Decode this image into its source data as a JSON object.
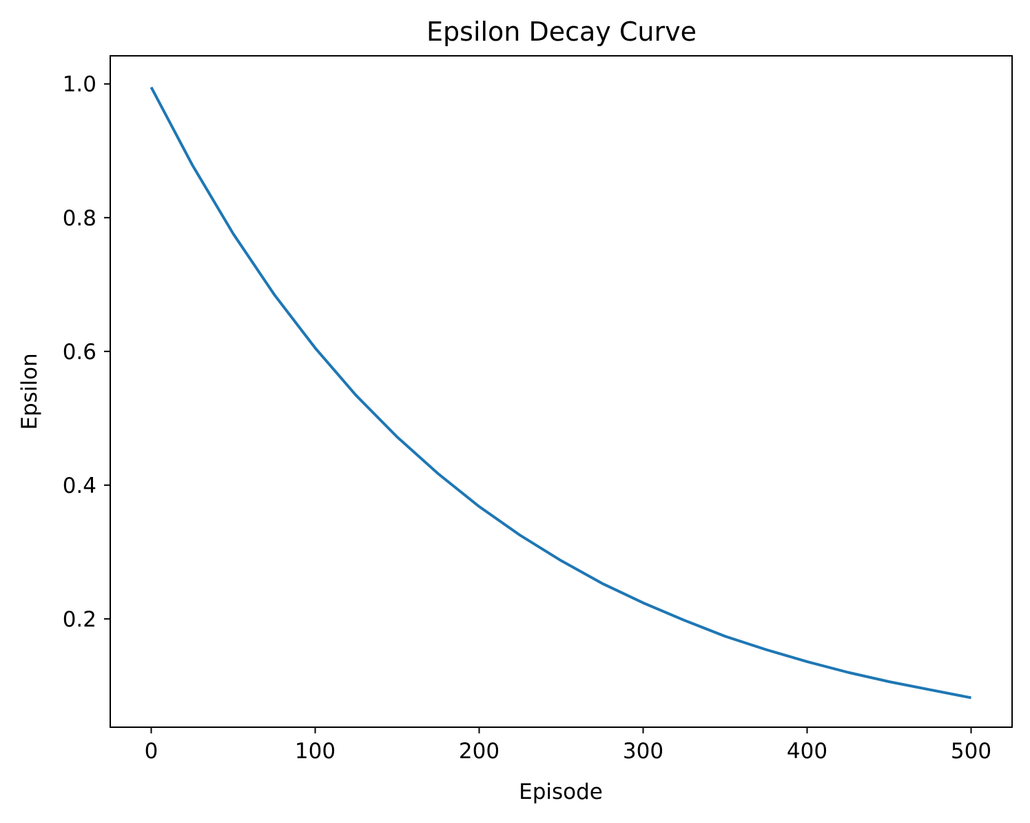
{
  "chart_data": {
    "type": "line",
    "title": "Epsilon Decay Curve",
    "xlabel": "Episode",
    "ylabel": "Epsilon",
    "xlim": [
      -25,
      525
    ],
    "ylim": [
      0.038,
      1.042
    ],
    "xticks": [
      0,
      100,
      200,
      300,
      400,
      500
    ],
    "yticks": [
      0.2,
      0.4,
      0.6,
      0.8,
      1.0
    ],
    "xtick_labels": [
      "0",
      "100",
      "200",
      "300",
      "400",
      "500"
    ],
    "ytick_labels": [
      "0.2",
      "0.4",
      "0.6",
      "0.8",
      "1.0"
    ],
    "grid": false,
    "legend": "none",
    "series": [
      {
        "color": "#1f77b4",
        "x": [
          0,
          25,
          50,
          75,
          100,
          125,
          150,
          175,
          200,
          225,
          250,
          275,
          300,
          325,
          350,
          375,
          400,
          425,
          450,
          475,
          500
        ],
        "y": [
          0.995,
          0.879,
          0.776,
          0.685,
          0.605,
          0.534,
          0.472,
          0.417,
          0.368,
          0.325,
          0.287,
          0.253,
          0.224,
          0.198,
          0.174,
          0.154,
          0.136,
          0.12,
          0.106,
          0.094,
          0.082
        ]
      }
    ]
  }
}
